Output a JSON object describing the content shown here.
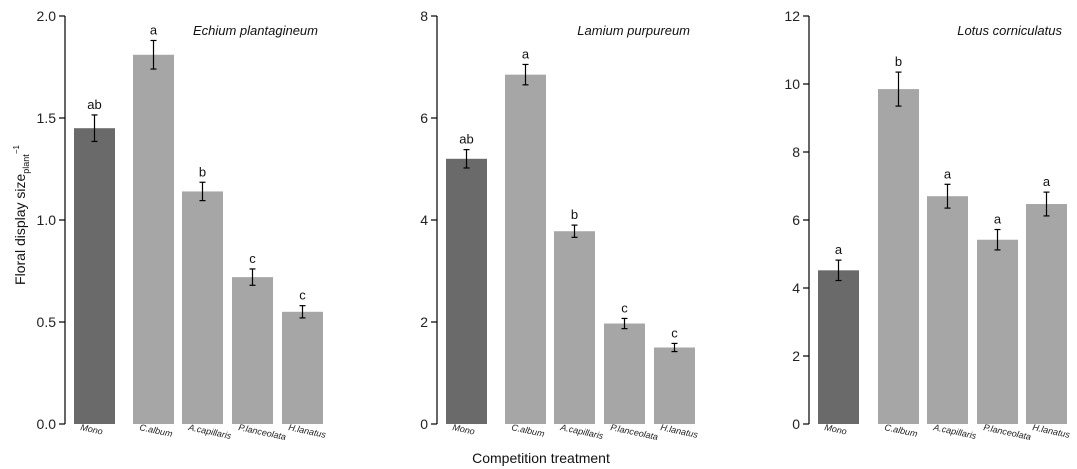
{
  "colors": {
    "mono": "#6a6a6a",
    "competitor": "#a6a6a6"
  },
  "xlabel": "Competition treatment",
  "ylabel_main": "Floral display size",
  "ylabel_sub": "plant",
  "ylabel_sup": "−1",
  "chart_data": [
    {
      "type": "bar",
      "title": "Echium plantagineum",
      "categories": [
        "Mono",
        "C.album",
        "A.capillaris",
        "P.lanceolata",
        "H.lanatus"
      ],
      "values": [
        1.45,
        1.81,
        1.14,
        0.72,
        0.55
      ],
      "errors": [
        0.065,
        0.07,
        0.045,
        0.04,
        0.03
      ],
      "letters": [
        "ab",
        "a",
        "b",
        "c",
        "c"
      ],
      "ylim": [
        0,
        2.0
      ],
      "yticks": [
        0.0,
        0.5,
        1.0,
        1.5,
        2.0
      ],
      "ytick_labels": [
        "0.0",
        "0.5",
        "1.0",
        "1.5",
        "2.0"
      ]
    },
    {
      "type": "bar",
      "title": "Lamium purpureum",
      "categories": [
        "Mono",
        "C.album",
        "A.capillaris",
        "P.lanceolata",
        "H.lanatus"
      ],
      "values": [
        5.2,
        6.85,
        3.78,
        1.97,
        1.5
      ],
      "errors": [
        0.18,
        0.2,
        0.12,
        0.1,
        0.08
      ],
      "letters": [
        "ab",
        "a",
        "b",
        "c",
        "c"
      ],
      "ylim": [
        0,
        8
      ],
      "yticks": [
        0,
        2,
        4,
        6,
        8
      ],
      "ytick_labels": [
        "0",
        "2",
        "4",
        "6",
        "8"
      ]
    },
    {
      "type": "bar",
      "title": "Lotus corniculatus",
      "categories": [
        "Mono",
        "C.album",
        "A.capillaris",
        "P.lanceolata",
        "H.lanatus"
      ],
      "values": [
        4.52,
        9.85,
        6.7,
        5.42,
        6.47
      ],
      "errors": [
        0.3,
        0.5,
        0.35,
        0.3,
        0.35
      ],
      "letters": [
        "a",
        "b",
        "a",
        "a",
        "a"
      ],
      "ylim": [
        0,
        12
      ],
      "yticks": [
        0,
        2,
        4,
        6,
        8,
        10,
        12
      ],
      "ytick_labels": [
        "0",
        "2",
        "4",
        "6",
        "8",
        "10",
        "12"
      ]
    }
  ]
}
